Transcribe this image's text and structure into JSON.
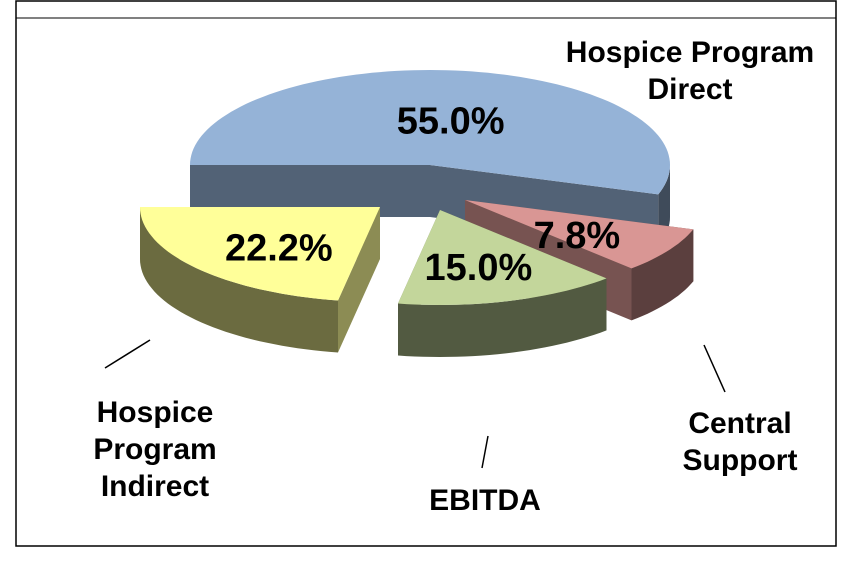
{
  "chart_data": {
    "type": "pie3d",
    "categories": [
      "Hospice Program Direct",
      "Central Support",
      "EBITDA",
      "Hospice Program Indirect"
    ],
    "values": [
      55.0,
      7.8,
      15.0,
      22.2
    ],
    "value_labels": [
      "55.0%",
      "7.8%",
      "15.0%",
      "22.2%"
    ],
    "colors": [
      "#95b3d7",
      "#d99694",
      "#c3d69b",
      "#ffff99"
    ]
  }
}
